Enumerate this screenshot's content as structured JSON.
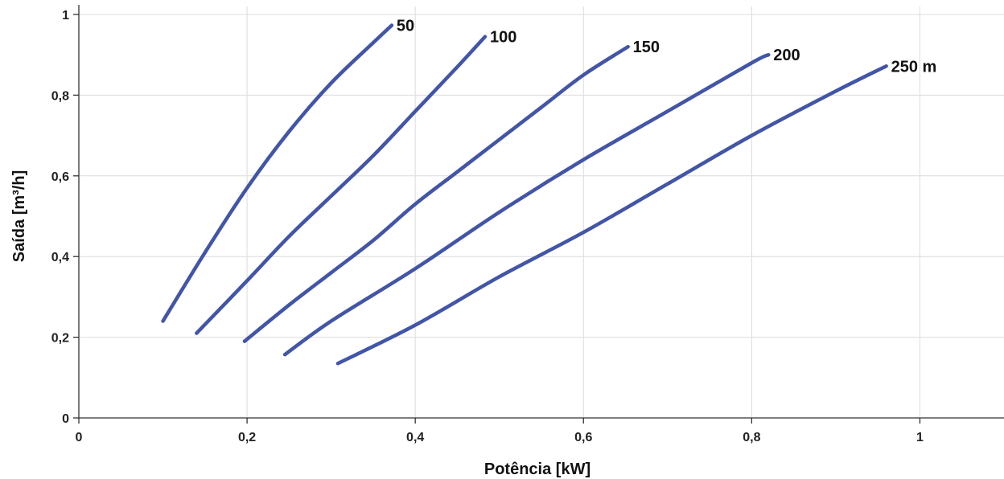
{
  "chart_data": {
    "type": "line",
    "title": "",
    "xlabel": "Potência [kW]",
    "ylabel": "Saída [m³/h]",
    "xlim": [
      0,
      1.1
    ],
    "ylim": [
      0,
      1
    ],
    "x_ticks": [
      {
        "value": 0,
        "label": "0"
      },
      {
        "value": 0.2,
        "label": "0,2"
      },
      {
        "value": 0.4,
        "label": "0,4"
      },
      {
        "value": 0.6,
        "label": "0,6"
      },
      {
        "value": 0.8,
        "label": "0,8"
      },
      {
        "value": 1,
        "label": "1"
      }
    ],
    "y_ticks": [
      {
        "value": 0,
        "label": "0"
      },
      {
        "value": 0.2,
        "label": "0,2"
      },
      {
        "value": 0.4,
        "label": "0,4"
      },
      {
        "value": 0.6,
        "label": "0,6"
      },
      {
        "value": 0.8,
        "label": "0,8"
      },
      {
        "value": 1,
        "label": "1"
      }
    ],
    "grid": true,
    "line_color": "#4255a6",
    "series": [
      {
        "name": "50",
        "x": [
          0.1,
          0.15,
          0.2,
          0.25,
          0.3,
          0.35,
          0.372
        ],
        "y": [
          0.24,
          0.41,
          0.57,
          0.71,
          0.83,
          0.93,
          0.973
        ]
      },
      {
        "name": "100",
        "x": [
          0.14,
          0.2,
          0.25,
          0.3,
          0.35,
          0.4,
          0.45,
          0.483
        ],
        "y": [
          0.21,
          0.34,
          0.45,
          0.55,
          0.65,
          0.76,
          0.87,
          0.945
        ]
      },
      {
        "name": "150",
        "x": [
          0.197,
          0.25,
          0.3,
          0.35,
          0.4,
          0.45,
          0.5,
          0.55,
          0.6,
          0.653
        ],
        "y": [
          0.19,
          0.28,
          0.36,
          0.44,
          0.53,
          0.61,
          0.69,
          0.77,
          0.85,
          0.92
        ]
      },
      {
        "name": "200",
        "x": [
          0.245,
          0.3,
          0.4,
          0.5,
          0.6,
          0.7,
          0.8,
          0.82
        ],
        "y": [
          0.157,
          0.24,
          0.37,
          0.51,
          0.64,
          0.76,
          0.88,
          0.9
        ]
      },
      {
        "name": "250 m",
        "x": [
          0.308,
          0.4,
          0.5,
          0.6,
          0.7,
          0.8,
          0.9,
          0.96
        ],
        "y": [
          0.135,
          0.23,
          0.35,
          0.46,
          0.58,
          0.7,
          0.81,
          0.872
        ]
      }
    ]
  }
}
